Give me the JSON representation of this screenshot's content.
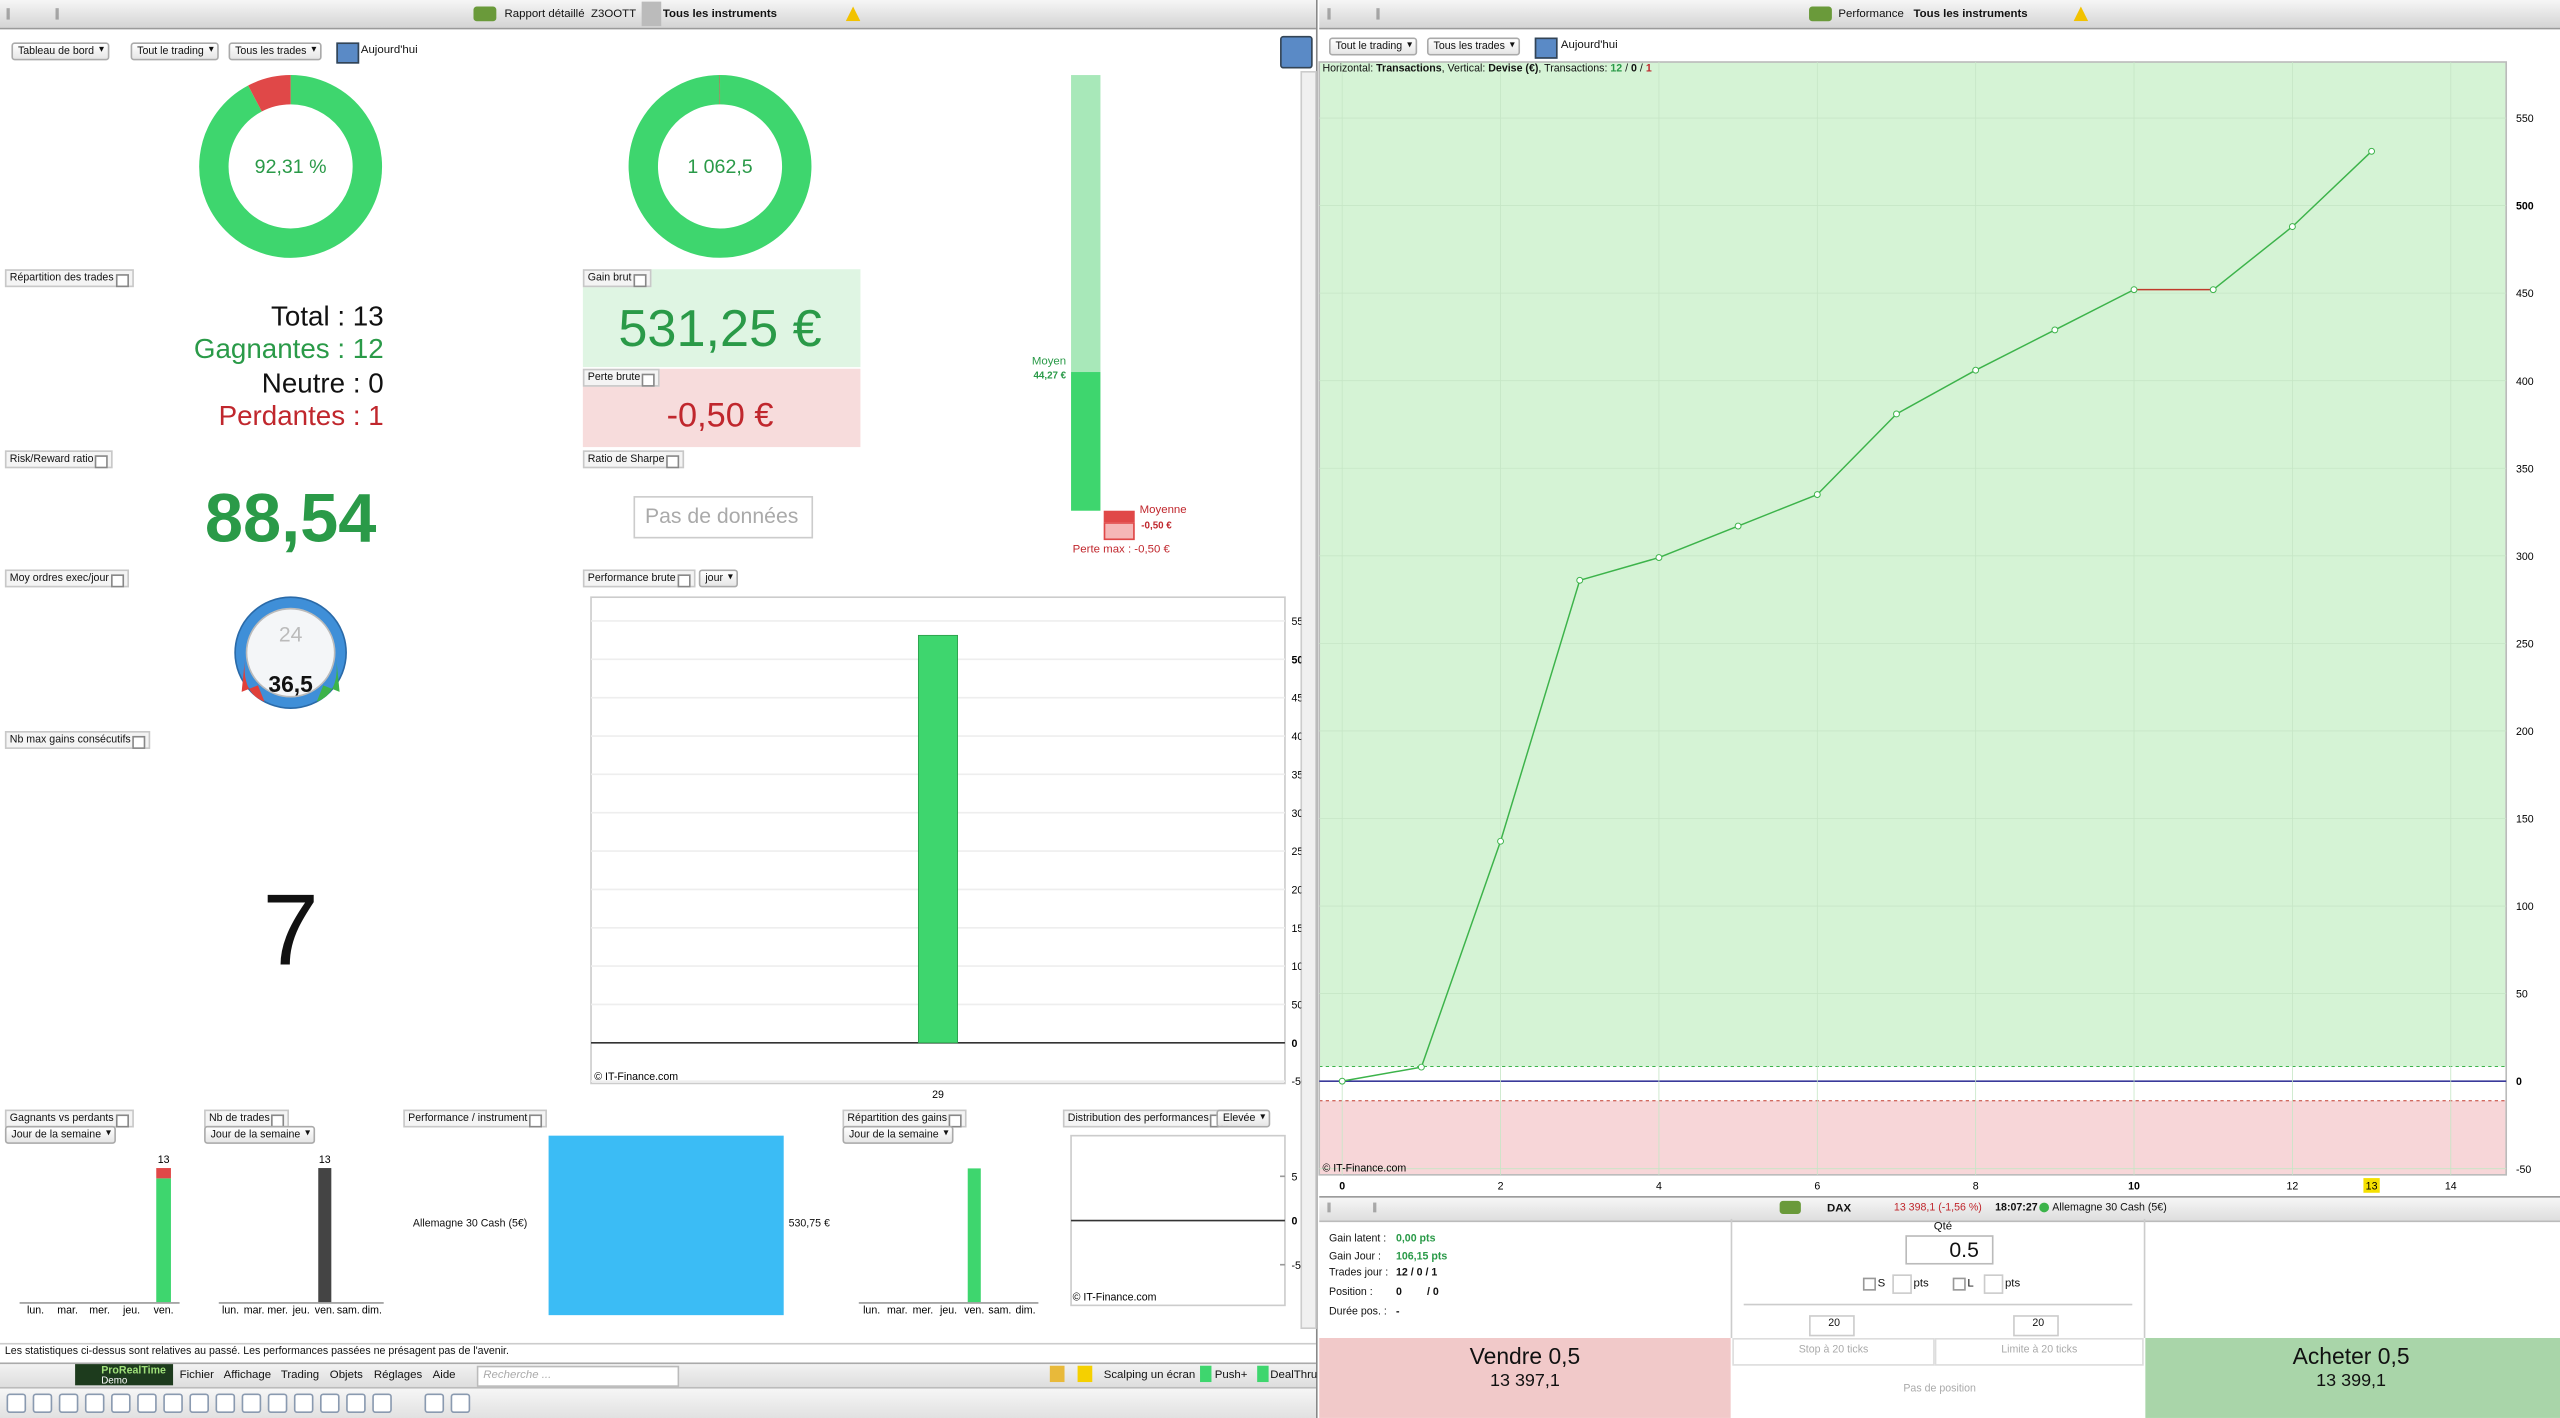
{
  "left_window": {
    "title": "Rapport détaillé",
    "account": "Z3OOTT",
    "instruments": "Tous les instruments"
  },
  "left_toolbar": [
    "Tableau de bord",
    "Tout le trading",
    "Tous les trades",
    "Aujourd'hui"
  ],
  "trades_split": {
    "title": "Répartition des trades",
    "lines": [
      "Total : 13",
      "Gagnantes : 12",
      "Neutre : 0",
      "Perdantes : 1"
    ]
  },
  "gain_brut": {
    "title": "Gain brut",
    "value": "531,25 €"
  },
  "perte_brute": {
    "title": "Perte brute",
    "value": "-0,50 €"
  },
  "risk_reward": {
    "title": "Risk/Reward ratio",
    "value": "88,54"
  },
  "sharpe": {
    "title": "Ratio de Sharpe",
    "value": "Pas de données"
  },
  "orders_per_day": {
    "title": "Moy ordres exec/jour",
    "clock": "24",
    "value": "36,5"
  },
  "max_consec": {
    "title": "Nb max gains consécutifs",
    "value": "7"
  },
  "gauge": {
    "avg_gain_label": "Moyen",
    "avg_gain": "44,27 €",
    "avg_loss_label": "Moyenne",
    "avg_loss": "-0,50 €",
    "max_loss": "Perte max : -0,50 €"
  },
  "chart_data": [
    {
      "type": "bar",
      "title": "Performance brute",
      "selector": "jour",
      "categories": [
        "29"
      ],
      "values": [
        531.25
      ],
      "color": "#3ed66e",
      "ylim": [
        -53,
        581
      ],
      "yticks": [
        -50,
        0,
        50,
        100,
        150,
        200,
        250,
        300,
        350,
        400,
        450,
        500,
        550
      ],
      "credit": "© IT-Finance.com"
    },
    {
      "type": "stacked_bar",
      "title": "Gagnants vs perdants",
      "selector": "Jour de la semaine",
      "categories": [
        "lun.",
        "mar.",
        "mer.",
        "jeu.",
        "ven."
      ],
      "series": [
        {
          "color": "#3ed66e",
          "values": [
            0,
            0,
            0,
            0,
            12
          ]
        },
        {
          "color": "#e04848",
          "values": [
            0,
            0,
            0,
            0,
            1
          ]
        }
      ],
      "total_labels": [
        null,
        null,
        null,
        null,
        "13"
      ],
      "ylim": [
        0,
        14.4
      ]
    },
    {
      "type": "bar",
      "title": "Nb de trades",
      "selector": "Jour de la semaine",
      "categories": [
        "lun.",
        "mar.",
        "mer.",
        "jeu.",
        "ven.",
        "sam.",
        "dim."
      ],
      "values": [
        0,
        0,
        0,
        0,
        13,
        0,
        0
      ],
      "value_labels": [
        null,
        null,
        null,
        null,
        "13",
        null,
        null
      ],
      "color": "#444444",
      "ylim": [
        0,
        14.4
      ]
    },
    {
      "type": "hbar",
      "title": "Performance / instrument",
      "categories": [
        "Allemagne 30 Cash (5€)"
      ],
      "values": [
        530.75
      ],
      "value_labels": [
        "530,75 €"
      ],
      "color": "#3bbcf5",
      "xlim": [
        0,
        530.75
      ]
    },
    {
      "type": "bar",
      "title": "Répartition des gains",
      "selector": "Jour de la semaine",
      "categories": [
        "lun.",
        "mar.",
        "mer.",
        "jeu.",
        "ven.",
        "sam.",
        "dim."
      ],
      "values": [
        0,
        0,
        0,
        0,
        531.25,
        0,
        0
      ],
      "color": "#3ed66e",
      "ylim": [
        0,
        590
      ]
    },
    {
      "type": "bar",
      "title": "Distribution des performances",
      "selector": "Elevée",
      "categories": [],
      "values": [],
      "ylim": [
        -9.6,
        9.6
      ],
      "yticks": [
        -5,
        0,
        5
      ],
      "credit": "© IT-Finance.com"
    },
    {
      "type": "line",
      "title": "Performance",
      "instruments": "Tous les instruments",
      "toolbar": [
        "Tout le trading",
        "Tous les trades",
        "Aujourd'hui"
      ],
      "info": [
        "Horizontal: ",
        "Transactions",
        ", Vertical: ",
        "Devise (€)",
        ", Transactions: ",
        "12",
        " / ",
        "0",
        " / ",
        "1"
      ],
      "x": [
        0,
        1,
        2,
        3,
        4,
        5,
        6,
        7,
        8,
        9,
        10,
        11,
        12,
        13
      ],
      "series": [
        {
          "color": "#3cb34a",
          "values": [
            0,
            8,
            137,
            286,
            299,
            317,
            335,
            381,
            406,
            429,
            452,
            452,
            488,
            531
          ]
        }
      ],
      "flat_color": "#c0392b",
      "xlim": [
        -0.29,
        14.7
      ],
      "xticks": [
        0,
        2,
        4,
        6,
        8,
        10,
        12,
        14
      ],
      "current_x": 13,
      "ylim": [
        -53.5,
        582
      ],
      "yticks": [
        -50,
        0,
        50,
        100,
        150,
        200,
        250,
        300,
        350,
        400,
        450,
        500,
        550
      ],
      "credit": "© IT-Finance.com"
    },
    {
      "type": "donut",
      "label": "92,31 %",
      "values": [
        12,
        1
      ],
      "colors": [
        "#3ed66e",
        "#e04848"
      ]
    },
    {
      "type": "donut",
      "label": "1 062,5",
      "values": [
        531.25,
        0.5
      ],
      "colors": [
        "#3ed66e",
        "#e04848"
      ]
    }
  ],
  "order": {
    "instrument": "DAX",
    "quote": "13 398,1 (-1,56 %)",
    "time": "18:07:27",
    "name": "Allemagne 30 Cash (5€)",
    "rows": [
      [
        "Gain latent :",
        "0,00 pts"
      ],
      [
        "Gain Jour :",
        "106,15 pts"
      ],
      [
        "Trades jour :",
        "12 / 0 / 1"
      ],
      [
        "Position :",
        "0",
        "/ 0"
      ],
      [
        "Durée pos. :",
        "-"
      ]
    ],
    "qty_label": "Qté",
    "qty": "0.5",
    "stop_check": "S",
    "limit_check": "L",
    "unit": "pts",
    "stop_ticks": "20",
    "limit_ticks": "20",
    "stop_label": "Stop à 20 ticks",
    "limit_label": "Limite à 20 ticks",
    "position": "Pas de position",
    "sell": "Vendre 0,5",
    "bid": "13 397,1",
    "buy": "Acheter 0,5",
    "ask": "13 399,1"
  },
  "footer": {
    "disclaimer": "Les statistiques ci-dessus sont relatives au passé. Les performances passées ne présagent pas de l'avenir.",
    "brand": [
      "ProRealTime",
      "Demo"
    ],
    "menu": [
      "Fichier",
      "Affichage",
      "Trading",
      "Objets",
      "Réglages",
      "Aide"
    ],
    "search": "Recherche ...",
    "status": [
      "Scalping un écran",
      "Push+",
      "DealThru"
    ]
  }
}
